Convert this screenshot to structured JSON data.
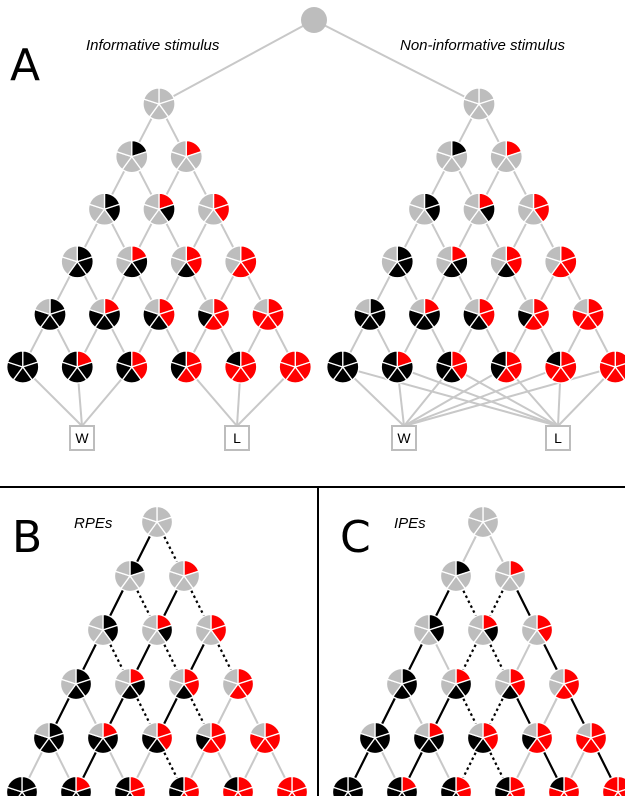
{
  "panels": {
    "A": {
      "letter": "A",
      "left_caption": "Informative stimulus",
      "right_caption": "Non-informative stimulus"
    },
    "B": {
      "letter": "B",
      "caption": "RPEs"
    },
    "C": {
      "letter": "C",
      "caption": "IPEs"
    }
  },
  "outcomes": {
    "win": "W",
    "loss": "L"
  },
  "colors": {
    "gray": "#bdbdbd",
    "black": "#000000",
    "red": "#ff0000",
    "line": "#c8c8c8",
    "divider": "#000000",
    "pe_line": "#000000"
  },
  "tree": {
    "slices_per_circle": 5,
    "rows": 6,
    "row_sizes": [
      1,
      2,
      3,
      4,
      5,
      6
    ],
    "node_state_rule": "node k in row r: k red slices, r-k black slices, remaining gray",
    "informative_outcome_map": {
      "win": [
        0,
        1,
        2
      ],
      "loss": [
        3,
        4,
        5
      ]
    },
    "non_informative_outcome_map": {
      "win": [
        0,
        1,
        2,
        3,
        4,
        5
      ],
      "loss": [
        0,
        1,
        2,
        3,
        4,
        5
      ]
    }
  }
}
